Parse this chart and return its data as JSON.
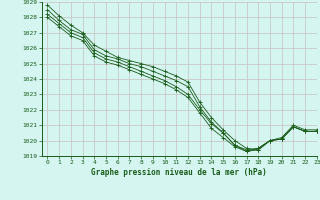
{
  "title": "Graphe pression niveau de la mer (hPa)",
  "xlim": [
    -0.5,
    23
  ],
  "ylim": [
    1019,
    1029
  ],
  "yticks": [
    1019,
    1020,
    1021,
    1022,
    1023,
    1024,
    1025,
    1026,
    1027,
    1028,
    1029
  ],
  "xticks": [
    0,
    1,
    2,
    3,
    4,
    5,
    6,
    7,
    8,
    9,
    10,
    11,
    12,
    13,
    14,
    15,
    16,
    17,
    18,
    19,
    20,
    21,
    22,
    23
  ],
  "background_color": "#d4f5f0",
  "grid_color_major": "#c8c0c0",
  "grid_color_minor": "#ddd8d8",
  "line_color": "#1a5c1a",
  "tick_color": "#1a5c1a",
  "label_color": "#1a5c1a",
  "series": [
    [
      1028.8,
      1028.1,
      1027.5,
      1027.0,
      1026.2,
      1025.8,
      1025.4,
      1025.2,
      1025.0,
      1024.8,
      1024.5,
      1024.2,
      1023.8,
      1022.5,
      1021.5,
      1020.7,
      1020.0,
      1019.5,
      1019.4,
      1020.0,
      1020.1,
      1020.9,
      1020.6,
      1020.6
    ],
    [
      1028.5,
      1027.8,
      1027.2,
      1026.9,
      1025.9,
      1025.5,
      1025.3,
      1025.0,
      1024.8,
      1024.5,
      1024.2,
      1023.9,
      1023.5,
      1022.2,
      1021.2,
      1020.5,
      1019.7,
      1019.3,
      1019.4,
      1020.0,
      1020.1,
      1020.9,
      1020.6,
      1020.6
    ],
    [
      1028.2,
      1027.6,
      1027.0,
      1026.7,
      1025.7,
      1025.3,
      1025.1,
      1024.8,
      1024.5,
      1024.2,
      1023.9,
      1023.5,
      1023.0,
      1022.0,
      1021.1,
      1020.5,
      1019.7,
      1019.4,
      1019.5,
      1020.0,
      1020.1,
      1020.9,
      1020.6,
      1020.6
    ],
    [
      1028.0,
      1027.4,
      1026.8,
      1026.5,
      1025.5,
      1025.1,
      1024.9,
      1024.6,
      1024.3,
      1024.0,
      1023.7,
      1023.3,
      1022.8,
      1021.8,
      1020.8,
      1020.2,
      1019.6,
      1019.3,
      1019.5,
      1020.0,
      1020.2,
      1021.0,
      1020.7,
      1020.7
    ]
  ],
  "figsize": [
    3.2,
    2.0
  ],
  "dpi": 100
}
